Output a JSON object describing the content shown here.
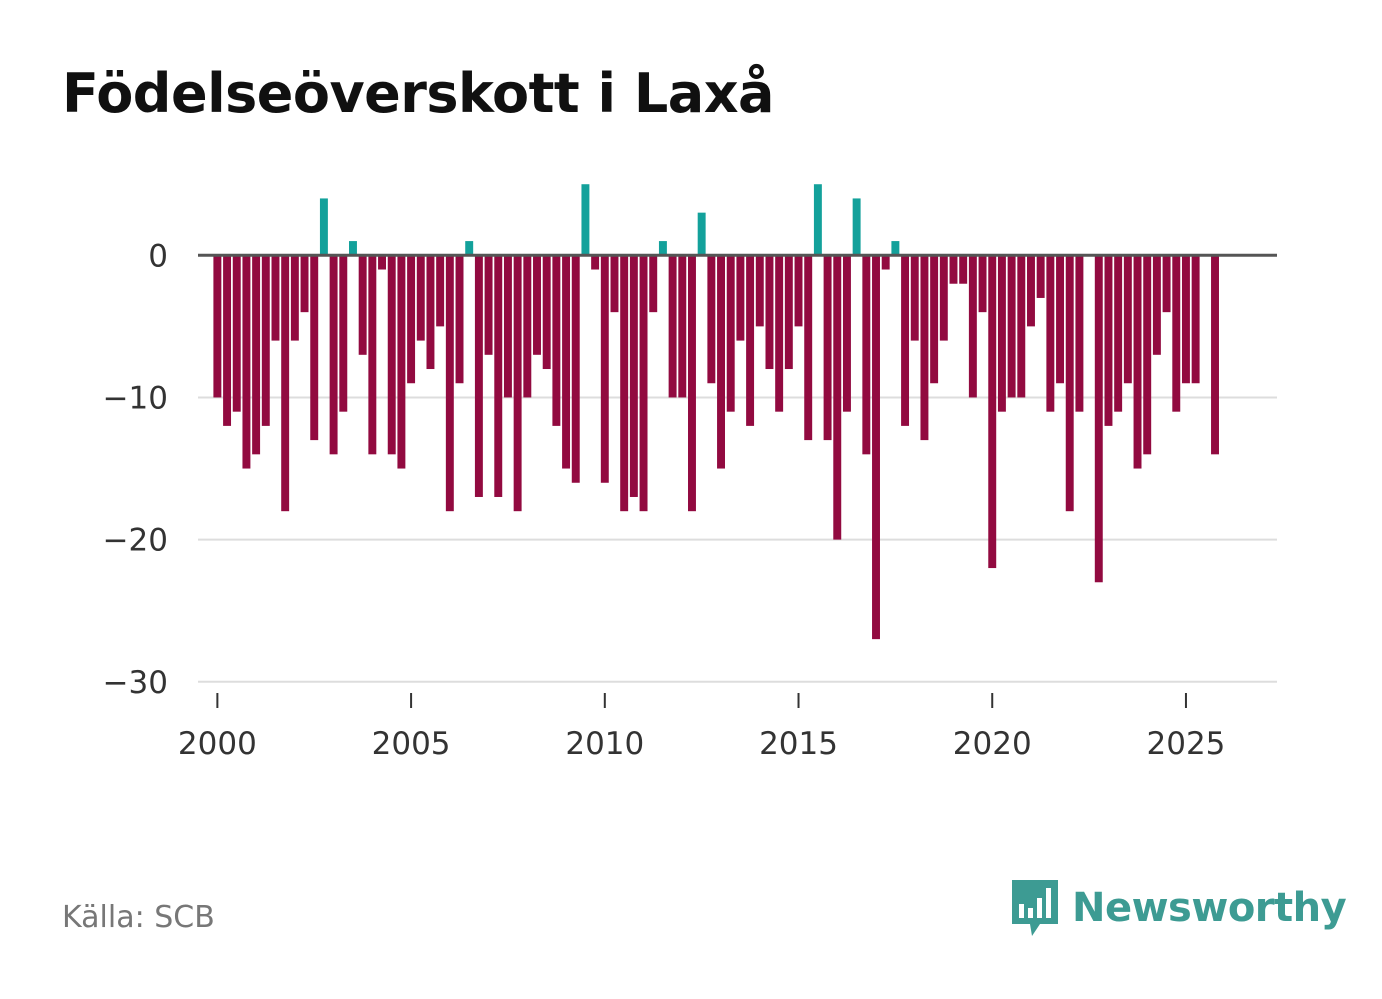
{
  "title": "Födelseöverskott i Laxå",
  "source": "Källa: SCB",
  "brand": {
    "name": "Newsworthy",
    "icon": "newsworthy-logo-icon"
  },
  "colors": {
    "positive": "#13a19b",
    "negative": "#920a40",
    "brand": "#3d9b93",
    "zero_line": "#555555",
    "grid": "#dddddd"
  },
  "chart_data": {
    "type": "bar",
    "title": "Födelseöverskott i Laxå",
    "xlabel": "",
    "ylabel": "",
    "frequency": "quarterly",
    "x_start": 2000.0,
    "x_step": 0.25,
    "xlim": [
      1999.5,
      2027.35
    ],
    "ylim": [
      -31,
      6
    ],
    "yticks": [
      0,
      -10,
      -20,
      -30
    ],
    "ytick_labels": [
      "0",
      "−10",
      "−20",
      "−30"
    ],
    "xticks": [
      2000,
      2005,
      2010,
      2015,
      2020,
      2025
    ],
    "xtick_labels": [
      "2000",
      "2005",
      "2010",
      "2015",
      "2020",
      "2025"
    ],
    "grid": true,
    "values": [
      -10,
      -12,
      -11,
      -15,
      -14,
      -12,
      -6,
      -18,
      -6,
      -4,
      -13,
      4,
      -14,
      -11,
      1,
      -7,
      -14,
      -1,
      -14,
      -15,
      -9,
      -6,
      -8,
      -5,
      -18,
      -9,
      1,
      -17,
      -7,
      -17,
      -10,
      -18,
      -10,
      -7,
      -8,
      -12,
      -15,
      -16,
      5,
      -1,
      -16,
      -4,
      -18,
      -17,
      -18,
      -4,
      1,
      -10,
      -10,
      -18,
      3,
      -9,
      -15,
      -11,
      -6,
      -12,
      -5,
      -8,
      -11,
      -8,
      -5,
      -13,
      5,
      -13,
      -20,
      -11,
      4,
      -14,
      -27,
      -1,
      1,
      -12,
      -6,
      -13,
      -9,
      -6,
      -2,
      -2,
      -10,
      -4,
      -22,
      -11,
      -10,
      -10,
      -5,
      -3,
      -11,
      -9,
      -18,
      -11,
      0,
      -23,
      -12,
      -11,
      -9,
      -15,
      -14,
      -7,
      -4,
      -11,
      -9,
      -9,
      0,
      -14
    ]
  }
}
